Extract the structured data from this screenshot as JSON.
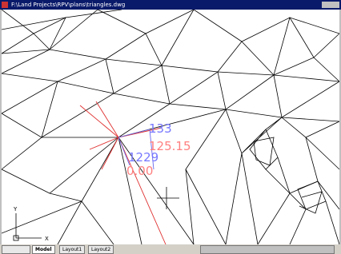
{
  "window": {
    "title": "F:\\Land Projects\\RPV\\plans\\triangles.dwg"
  },
  "canvas": {
    "labels": [
      "133",
      "125.15",
      "1229",
      "0.00"
    ]
  },
  "ucs": {
    "x_label": "X",
    "y_label": "Y"
  },
  "tabs": [
    "Model",
    "Layout1",
    "Layout2"
  ]
}
